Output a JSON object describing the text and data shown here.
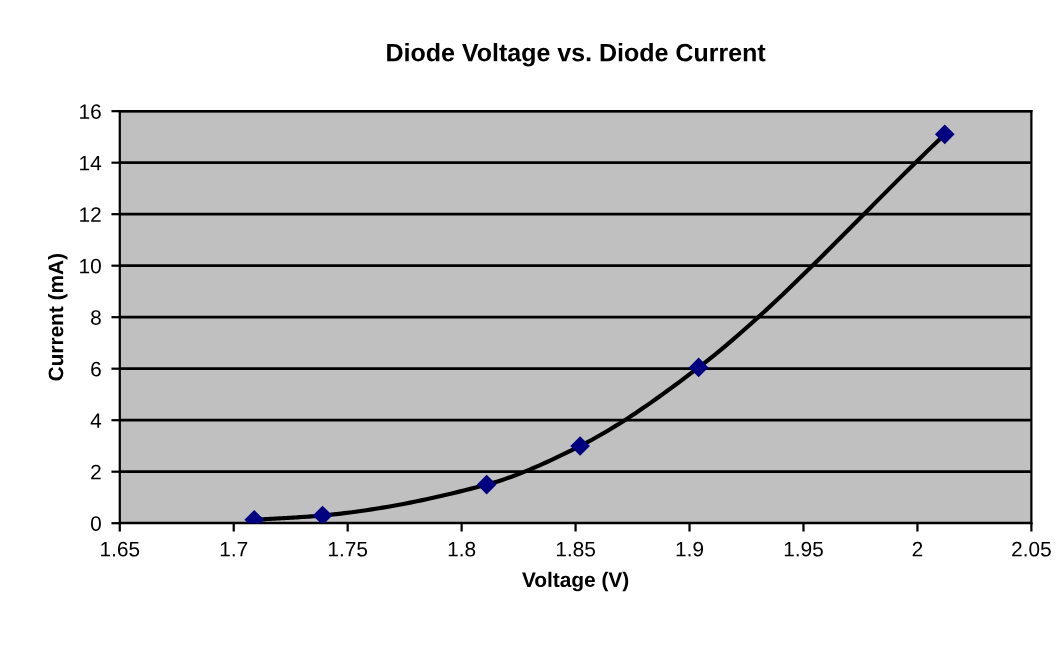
{
  "chart_data": {
    "type": "line",
    "title": "Diode Voltage vs. Diode Current",
    "xlabel": "Voltage (V)",
    "ylabel": "Current (mA)",
    "x": [
      1.709,
      1.739,
      1.811,
      1.852,
      1.904,
      2.012
    ],
    "series": [
      {
        "color": "#000080",
        "values": [
          0.13,
          0.3,
          1.5,
          3.0,
          6.05,
          15.1
        ]
      }
    ],
    "xlim": [
      1.65,
      2.05
    ],
    "xticks": [
      1.65,
      1.7,
      1.75,
      1.8,
      1.85,
      1.9,
      1.95,
      2,
      2.05
    ],
    "ylim": [
      0,
      16
    ],
    "yticks": [
      0,
      2,
      4,
      6,
      8,
      10,
      12,
      14,
      16
    ],
    "grid": "y",
    "legend": false,
    "marker": "diamond",
    "line_style": "solid"
  }
}
